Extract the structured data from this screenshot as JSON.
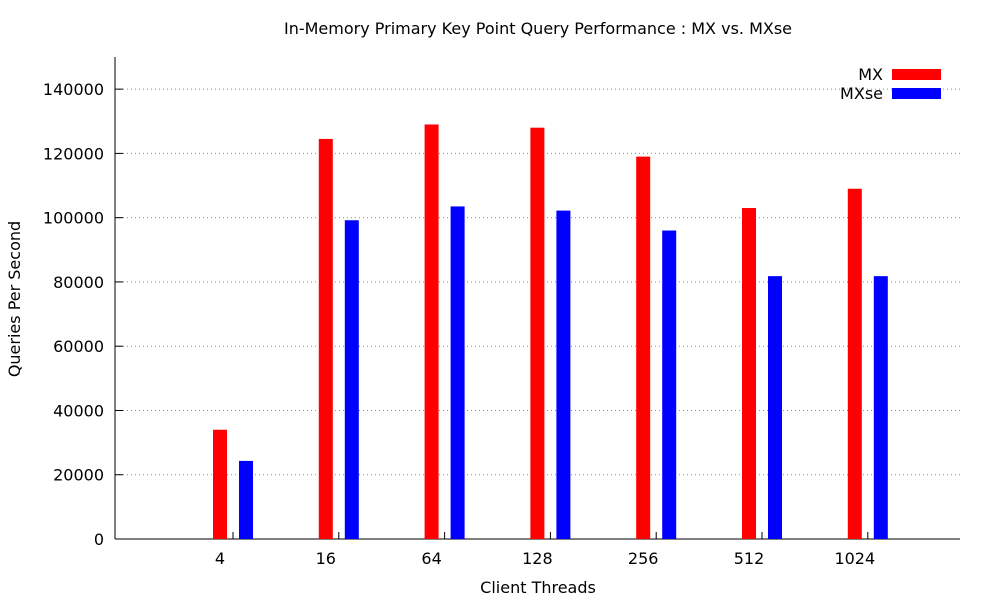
{
  "chart_data": {
    "type": "bar",
    "title": "In-Memory Primary Key Point Query Performance : MX vs. MXse",
    "xlabel": "Client Threads",
    "ylabel": "Queries Per Second",
    "categories": [
      "4",
      "16",
      "64",
      "128",
      "256",
      "512",
      "1024"
    ],
    "ylim": [
      0,
      150000
    ],
    "yticks": [
      0,
      20000,
      40000,
      60000,
      80000,
      100000,
      120000,
      140000
    ],
    "ytick_labels": [
      "0",
      "20000",
      "40000",
      "60000",
      "80000",
      "100000",
      "120000",
      "140000"
    ],
    "grid": true,
    "legend_position": "top-right",
    "series": [
      {
        "name": "MX",
        "color": "#ff0000",
        "values": [
          34000,
          124500,
          129000,
          128000,
          119000,
          103000,
          109000
        ]
      },
      {
        "name": "MXse",
        "color": "#0000ff",
        "values": [
          24300,
          99200,
          103500,
          102200,
          96000,
          81800,
          81800
        ]
      }
    ]
  }
}
